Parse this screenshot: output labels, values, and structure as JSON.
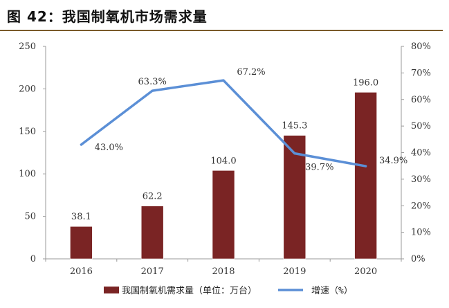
{
  "figure": {
    "title": "图 42：我国制氧机市场需求量"
  },
  "chart_data": {
    "type": "bar",
    "title": "",
    "categories": [
      "2016",
      "2017",
      "2018",
      "2019",
      "2020"
    ],
    "series": [
      {
        "name": "我国制氧机需求量（单位：万台）",
        "type": "bar",
        "axis": "left",
        "values": [
          38.1,
          62.2,
          104.0,
          145.3,
          196.0
        ],
        "labels": [
          "38.1",
          "62.2",
          "104.0",
          "145.3",
          "196.0"
        ],
        "color": "#7a2424"
      },
      {
        "name": "增速（%）",
        "type": "line",
        "axis": "right",
        "values": [
          43.0,
          63.3,
          67.2,
          39.7,
          34.9
        ],
        "labels": [
          "43.0%",
          "63.3%",
          "67.2%",
          "39.7%",
          "34.9%"
        ],
        "color": "#5b8fd6"
      }
    ],
    "y_left": {
      "range": [
        0,
        250
      ],
      "ticks": [
        "0",
        "50",
        "100",
        "150",
        "200",
        "250"
      ]
    },
    "y_right": {
      "range": [
        0,
        80
      ],
      "ticks": [
        "0%",
        "10%",
        "20%",
        "30%",
        "40%",
        "50%",
        "60%",
        "70%",
        "80%"
      ]
    },
    "legend_position": "bottom",
    "grid": false
  }
}
